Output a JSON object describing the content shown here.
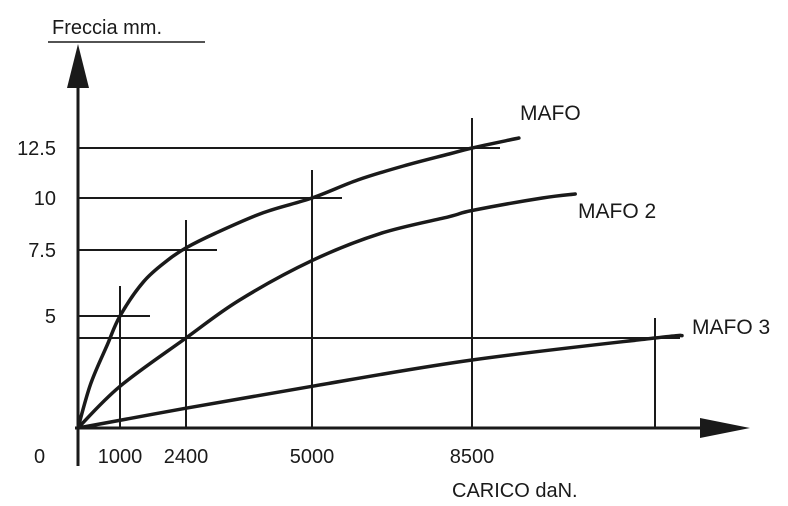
{
  "chart_data": {
    "type": "line",
    "ylabel": "Freccia  mm.",
    "xlabel": "CARICO daN.",
    "origin_label": "0",
    "x_ticks": [
      {
        "value": 1000,
        "label": "1000"
      },
      {
        "value": 2400,
        "label": "2400"
      },
      {
        "value": 5000,
        "label": "5000"
      },
      {
        "value": 8500,
        "label": "8500"
      }
    ],
    "y_ticks": [
      {
        "value": 5,
        "label": "5"
      },
      {
        "value": 7.5,
        "label": "7.5"
      },
      {
        "value": 10,
        "label": "10"
      },
      {
        "value": 12.5,
        "label": "12.5"
      }
    ],
    "series": [
      {
        "name": "MAFO",
        "points": [
          [
            0,
            0
          ],
          [
            300,
            2.0
          ],
          [
            700,
            3.8
          ],
          [
            1000,
            5.0
          ],
          [
            1500,
            6.3
          ],
          [
            2000,
            7.1
          ],
          [
            2400,
            7.6
          ],
          [
            3000,
            8.3
          ],
          [
            4000,
            9.3
          ],
          [
            5000,
            10.0
          ],
          [
            6000,
            10.9
          ],
          [
            7000,
            11.6
          ],
          [
            8000,
            12.2
          ],
          [
            8500,
            12.5
          ],
          [
            9500,
            13.0
          ]
        ]
      },
      {
        "name": "MAFO 2",
        "points": [
          [
            0,
            0
          ],
          [
            1000,
            1.9
          ],
          [
            2400,
            4.1
          ],
          [
            3500,
            5.6
          ],
          [
            5000,
            7.1
          ],
          [
            6500,
            8.3
          ],
          [
            8000,
            9.1
          ],
          [
            8500,
            9.4
          ],
          [
            10000,
            10.0
          ],
          [
            10700,
            10.2
          ]
        ]
      },
      {
        "name": "MAFO 3",
        "points": [
          [
            0,
            0
          ],
          [
            2400,
            0.9
          ],
          [
            5000,
            1.9
          ],
          [
            8500,
            3.1
          ],
          [
            12400,
            4.1
          ],
          [
            13000,
            4.2
          ]
        ]
      }
    ],
    "reference_lines": [
      {
        "x": 1000,
        "y": 5
      },
      {
        "x": 2400,
        "y": 7.5
      },
      {
        "x": 5000,
        "y": 10
      },
      {
        "x": 8500,
        "y": 12.5
      },
      {
        "x": 12400,
        "y": 4.1
      }
    ]
  }
}
